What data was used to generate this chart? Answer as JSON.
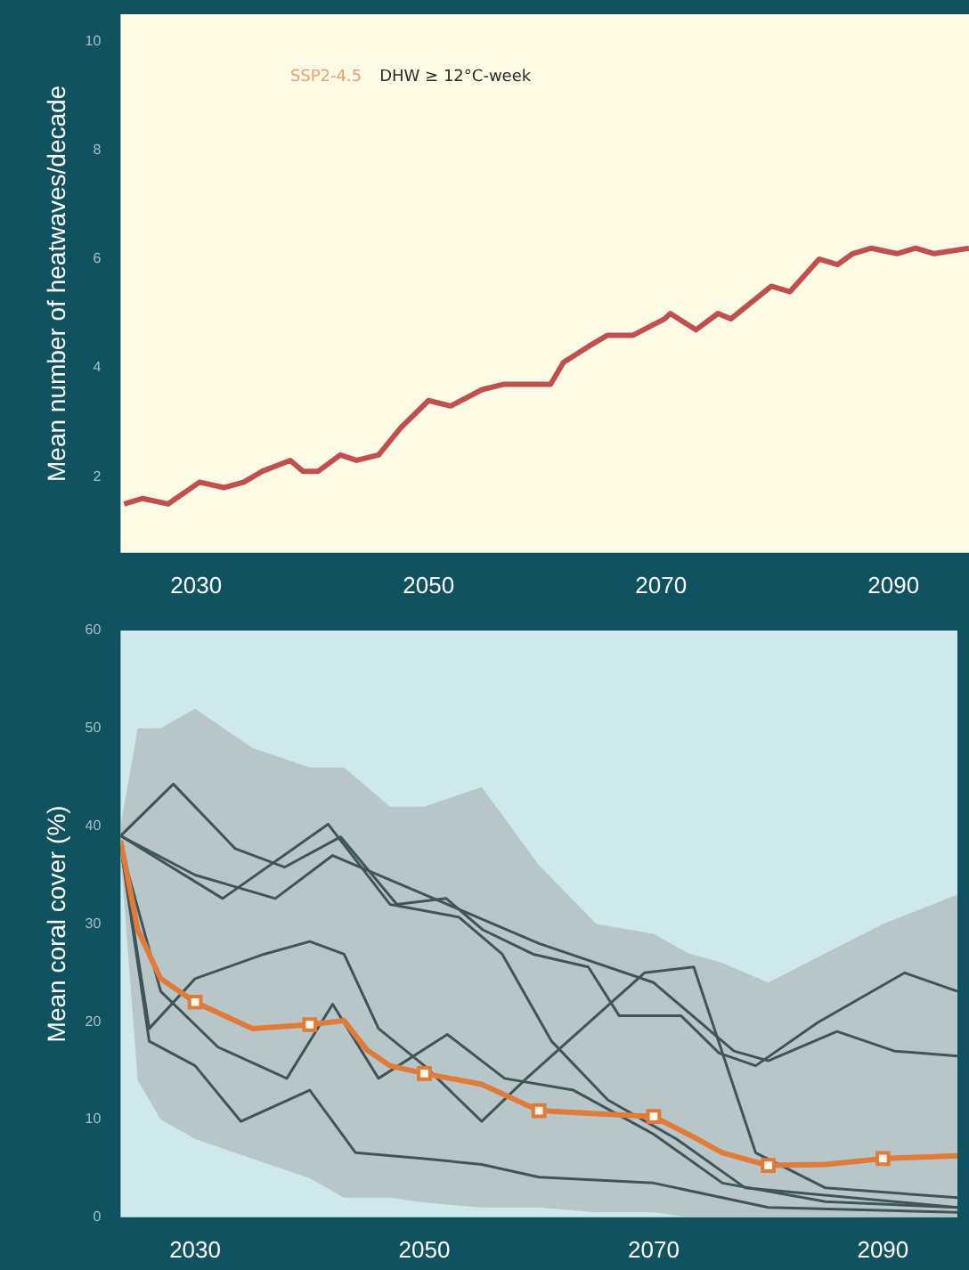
{
  "chart_data": [
    {
      "type": "line",
      "ylabel": "Mean number of heatwaves/decade",
      "annotations": [
        "SSP2-4.5",
        "DHW ≥ 12°C-week"
      ],
      "xlim": [
        2023.5,
        2096.5
      ],
      "xticks": [
        2030,
        2050,
        2070,
        2090
      ],
      "ylim": [
        0.6,
        10.5
      ],
      "yticks": [
        2,
        4,
        6,
        8,
        10
      ],
      "series": [
        {
          "color": "#c0504d",
          "x": [
            2023.8,
            2025.4,
            2027.6,
            2030.3,
            2032.4,
            2034.1,
            2035.7,
            2038.1,
            2039.2,
            2040.5,
            2042.4,
            2043.8,
            2045.7,
            2047.6,
            2050,
            2051.9,
            2054.6,
            2056.5,
            2057.8,
            2060.5,
            2061.6,
            2063.8,
            2065.4,
            2067.6,
            2070.3,
            2070.8,
            2073,
            2074.9,
            2076,
            2079.5,
            2081.1,
            2083.6,
            2085.2,
            2086.5,
            2088.1,
            2090.3,
            2091.9,
            2093.5,
            2096.5
          ],
          "values": [
            1.5,
            1.6,
            1.5,
            1.9,
            1.8,
            1.9,
            2.1,
            2.3,
            2.1,
            2.1,
            2.4,
            2.3,
            2.4,
            2.9,
            3.4,
            3.3,
            3.6,
            3.7,
            3.7,
            3.7,
            4.1,
            4.4,
            4.6,
            4.6,
            4.9,
            5.0,
            4.7,
            5.0,
            4.9,
            5.5,
            5.4,
            6.0,
            5.9,
            6.1,
            6.2,
            6.1,
            6.2,
            6.1,
            6.2
          ]
        }
      ]
    },
    {
      "type": "line",
      "ylabel": "Mean coral cover (%)",
      "xlim": [
        2023.5,
        2096.5
      ],
      "xticks": [
        2030,
        2050,
        2070,
        2090
      ],
      "ylim": [
        0,
        60
      ],
      "yticks": [
        0,
        10,
        20,
        30,
        40,
        50,
        60
      ],
      "series": [
        {
          "color": "#3f5558",
          "x": [
            2023.5,
            2028.1,
            2033.5,
            2037.8,
            2042.7,
            2047.6,
            2051.9,
            2055.1,
            2059.5,
            2064.3,
            2067,
            2072.4,
            2075.7,
            2078.9,
            2084.3,
            2091.9,
            2096.5
          ],
          "values": [
            39,
            44.3,
            37.7,
            35.8,
            38.9,
            32,
            32.6,
            29.4,
            26.9,
            25.6,
            20.6,
            20.6,
            16.8,
            15.5,
            19.9,
            25,
            23.1
          ]
        },
        {
          "color": "#3f5558",
          "x": [
            2023.5,
            2032.4,
            2041.6,
            2047,
            2053,
            2056.8,
            2061.1,
            2066,
            2072,
            2078,
            2096.5
          ],
          "values": [
            39,
            32.6,
            40.2,
            32,
            30.7,
            26.9,
            18,
            12,
            8,
            3,
            1
          ]
        },
        {
          "color": "#3f5558",
          "x": [
            2023.5,
            2026,
            2030,
            2036,
            2040,
            2043,
            2046,
            2050,
            2055,
            2058.9,
            2069.2,
            2073.5,
            2078.9,
            2085,
            2096.5
          ],
          "values": [
            38,
            19.3,
            24.4,
            26.9,
            28.2,
            26.9,
            19.3,
            15.5,
            9.8,
            14.2,
            25,
            25.6,
            6.6,
            3,
            2
          ]
        },
        {
          "color": "#3f5558",
          "x": [
            2023.5,
            2026,
            2030,
            2034,
            2040,
            2044,
            2050,
            2055,
            2060,
            2070,
            2080,
            2096.5
          ],
          "values": [
            38,
            18,
            15.5,
            9.8,
            13,
            6.6,
            6,
            5.4,
            4.1,
            3.5,
            1,
            0.5
          ]
        },
        {
          "color": "#3f5558",
          "x": [
            2023.5,
            2027,
            2032,
            2038,
            2042,
            2046,
            2052,
            2057,
            2063,
            2070,
            2076,
            2085,
            2096.5
          ],
          "values": [
            38,
            23.1,
            17.4,
            14.2,
            21.8,
            14.2,
            18.7,
            14.2,
            13,
            8.5,
            3.5,
            1.6,
            1
          ]
        },
        {
          "color": "#3f5558",
          "x": [
            2023.5,
            2030,
            2037,
            2042,
            2050,
            2060,
            2070,
            2077,
            2080,
            2086,
            2091,
            2096.5
          ],
          "values": [
            39,
            35,
            32.6,
            37,
            33,
            28,
            24,
            17,
            16,
            19,
            17,
            16.5
          ]
        },
        {
          "color": "#e07b39",
          "x": [
            2023.5,
            2025,
            2027,
            2030,
            2035,
            2040,
            2043,
            2045,
            2047,
            2050,
            2055,
            2060,
            2065,
            2070,
            2073,
            2076,
            2080,
            2085,
            2090,
            2096.5
          ],
          "values": [
            38.5,
            29.4,
            24.4,
            22,
            19.3,
            19.7,
            20.1,
            17.1,
            15.5,
            14.7,
            13.6,
            10.9,
            10.6,
            10.3,
            8.5,
            6.6,
            5.3,
            5.4,
            6,
            6.3
          ],
          "lower": [
            37,
            14,
            10,
            8,
            6,
            4,
            2,
            2,
            2,
            1.5,
            1,
            1,
            0.5,
            0.5,
            0,
            0,
            0,
            0,
            0,
            0
          ],
          "upper": [
            40,
            50,
            50,
            52,
            48,
            46,
            46,
            44,
            42,
            42,
            44,
            36,
            30,
            29,
            27,
            26,
            24,
            27,
            30,
            33
          ]
        },
        {
          "type": "scatter",
          "marker": "square",
          "color": "#e07b39",
          "x": [
            2030,
            2040,
            2050,
            2060,
            2070,
            2080,
            2090
          ],
          "values": [
            22,
            19.7,
            14.7,
            10.9,
            10.3,
            5.3,
            6
          ]
        }
      ]
    }
  ]
}
